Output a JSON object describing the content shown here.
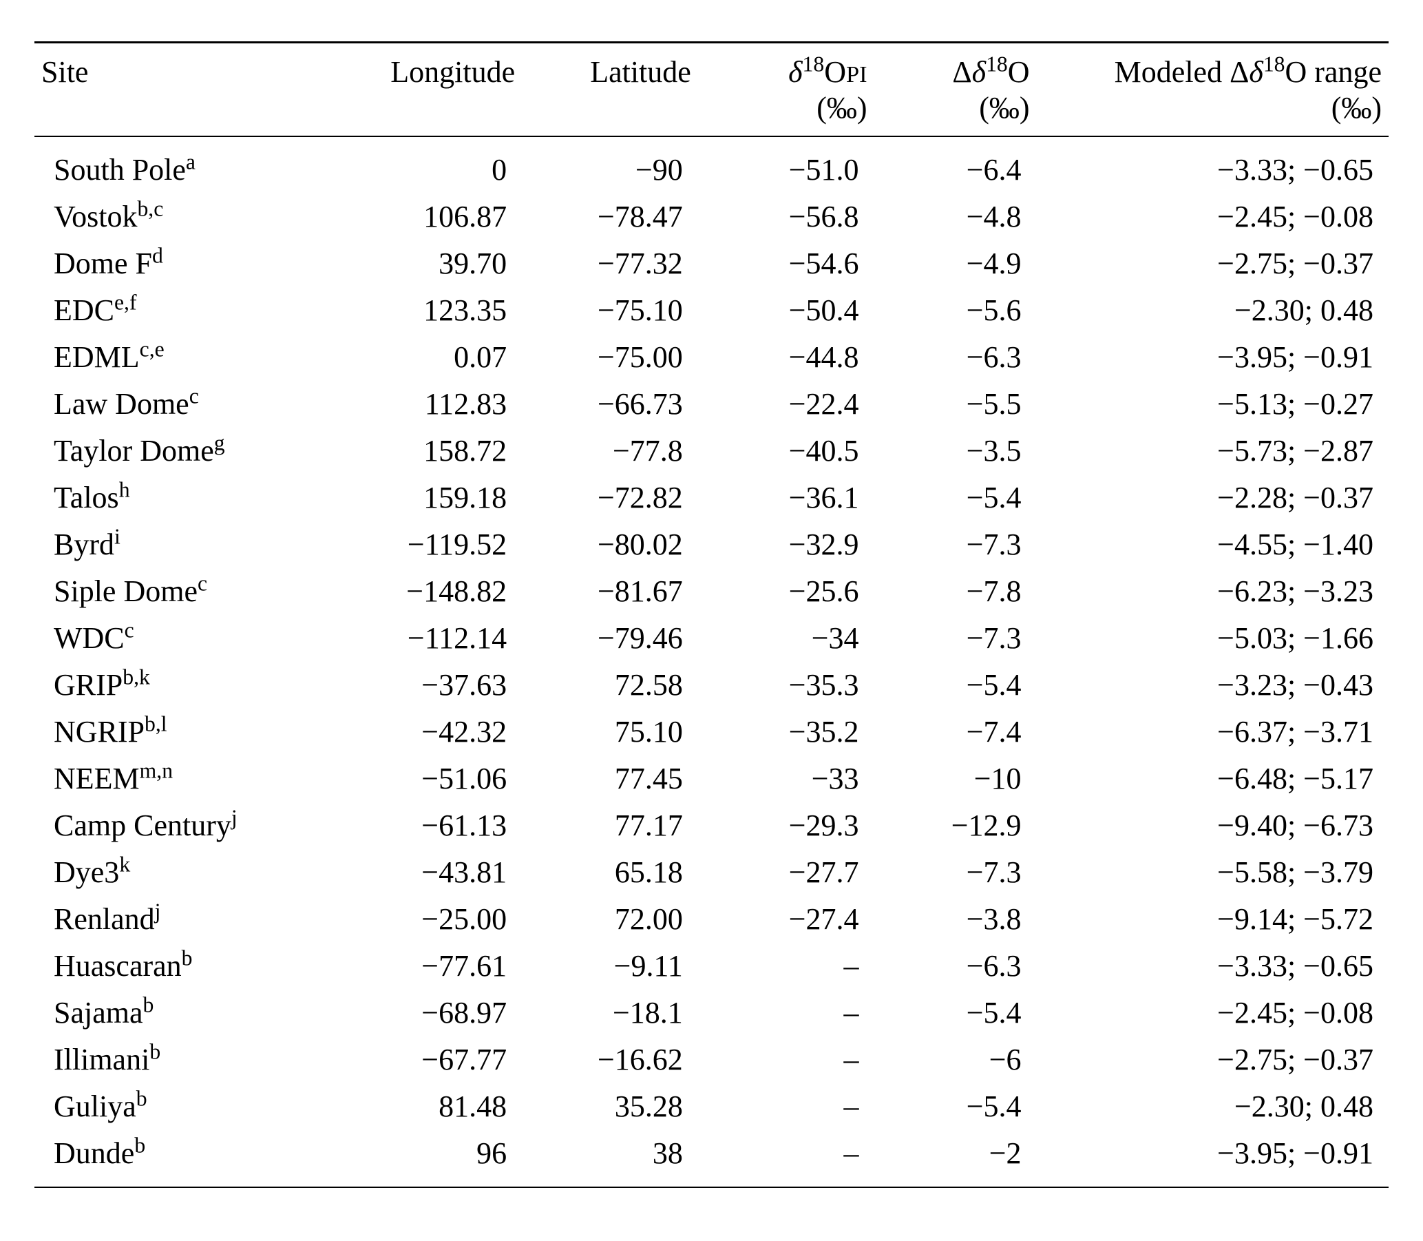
{
  "table": {
    "type": "table",
    "background_color": "#ffffff",
    "text_color": "#000000",
    "rule_color": "#000000",
    "font_family": "Times New Roman",
    "font_size_pt": 33,
    "columns": [
      {
        "key": "site",
        "label_line1": "Site",
        "label_line2": "",
        "align": "left",
        "width_pct": 22
      },
      {
        "key": "lon",
        "label_line1": "Longitude",
        "label_line2": "",
        "align": "right",
        "width_pct": 14
      },
      {
        "key": "lat",
        "label_line1": "Latitude",
        "label_line2": "",
        "align": "right",
        "width_pct": 13
      },
      {
        "key": "d18opi",
        "label_line1": "δ¹⁸Oᴘɪ",
        "label_line2": "(‰)",
        "align": "right",
        "width_pct": 13,
        "is_html": true,
        "label_line1_html": "<span style=\"font-style:italic\">δ</span><sup>18</sup>O<span class=\"isub\">PI</span>"
      },
      {
        "key": "dd18o",
        "label_line1": "Δδ¹⁸O",
        "label_line2": "(‰)",
        "align": "right",
        "width_pct": 12,
        "is_html": true,
        "label_line1_html": "Δ<span style=\"font-style:italic\">δ</span><sup>18</sup>O"
      },
      {
        "key": "range",
        "label_line1": "Modeled Δδ¹⁸O range",
        "label_line2": "(‰)",
        "align": "right",
        "width_pct": 26,
        "is_html": true,
        "label_line1_html": "Modeled Δ<span style=\"font-style:italic\">δ</span><sup>18</sup>O range"
      }
    ],
    "rows": [
      {
        "site": "South Pole",
        "site_sup": "a",
        "lon": "0",
        "lat": "−90",
        "d18opi": "−51.0",
        "dd18o": "−6.4",
        "range": "−3.33; −0.65"
      },
      {
        "site": "Vostok",
        "site_sup": "b,c",
        "lon": "106.87",
        "lat": "−78.47",
        "d18opi": "−56.8",
        "dd18o": "−4.8",
        "range": "−2.45; −0.08"
      },
      {
        "site": "Dome F",
        "site_sup": "d",
        "lon": "39.70",
        "lat": "−77.32",
        "d18opi": "−54.6",
        "dd18o": "−4.9",
        "range": "−2.75; −0.37"
      },
      {
        "site": "EDC",
        "site_sup": "e,f",
        "lon": "123.35",
        "lat": "−75.10",
        "d18opi": "−50.4",
        "dd18o": "−5.6",
        "range": "−2.30; 0.48"
      },
      {
        "site": "EDML",
        "site_sup": "c,e",
        "lon": "0.07",
        "lat": "−75.00",
        "d18opi": "−44.8",
        "dd18o": "−6.3",
        "range": "−3.95; −0.91"
      },
      {
        "site": "Law Dome",
        "site_sup": "c",
        "lon": "112.83",
        "lat": "−66.73",
        "d18opi": "−22.4",
        "dd18o": "−5.5",
        "range": "−5.13; −0.27"
      },
      {
        "site": "Taylor Dome",
        "site_sup": "g",
        "lon": "158.72",
        "lat": "−77.8",
        "d18opi": "−40.5",
        "dd18o": "−3.5",
        "range": "−5.73; −2.87"
      },
      {
        "site": "Talos",
        "site_sup": "h",
        "lon": "159.18",
        "lat": "−72.82",
        "d18opi": "−36.1",
        "dd18o": "−5.4",
        "range": "−2.28; −0.37"
      },
      {
        "site": "Byrd",
        "site_sup": "i",
        "lon": "−119.52",
        "lat": "−80.02",
        "d18opi": "−32.9",
        "dd18o": "−7.3",
        "range": "−4.55; −1.40"
      },
      {
        "site": "Siple Dome",
        "site_sup": "c",
        "lon": "−148.82",
        "lat": "−81.67",
        "d18opi": "−25.6",
        "dd18o": "−7.8",
        "range": "−6.23; −3.23"
      },
      {
        "site": "WDC",
        "site_sup": "c",
        "lon": "−112.14",
        "lat": "−79.46",
        "d18opi": "−34",
        "dd18o": "−7.3",
        "range": "−5.03; −1.66"
      },
      {
        "site": "GRIP",
        "site_sup": "b,k",
        "lon": "−37.63",
        "lat": "72.58",
        "d18opi": "−35.3",
        "dd18o": "−5.4",
        "range": "−3.23; −0.43"
      },
      {
        "site": "NGRIP",
        "site_sup": "b,l",
        "lon": "−42.32",
        "lat": "75.10",
        "d18opi": "−35.2",
        "dd18o": "−7.4",
        "range": "−6.37; −3.71"
      },
      {
        "site": "NEEM",
        "site_sup": "m,n",
        "lon": "−51.06",
        "lat": "77.45",
        "d18opi": "−33",
        "dd18o": "−10",
        "range": "−6.48; −5.17"
      },
      {
        "site": "Camp Century",
        "site_sup": "j",
        "lon": "−61.13",
        "lat": "77.17",
        "d18opi": "−29.3",
        "dd18o": "−12.9",
        "range": "−9.40; −6.73"
      },
      {
        "site": "Dye3",
        "site_sup": "k",
        "lon": "−43.81",
        "lat": "65.18",
        "d18opi": "−27.7",
        "dd18o": "−7.3",
        "range": "−5.58; −3.79"
      },
      {
        "site": "Renland",
        "site_sup": "j",
        "lon": "−25.00",
        "lat": "72.00",
        "d18opi": "−27.4",
        "dd18o": "−3.8",
        "range": "−9.14; −5.72"
      },
      {
        "site": "Huascaran",
        "site_sup": "b",
        "lon": "−77.61",
        "lat": "−9.11",
        "d18opi": "–",
        "dd18o": "−6.3",
        "range": "−3.33; −0.65"
      },
      {
        "site": "Sajama",
        "site_sup": "b",
        "lon": "−68.97",
        "lat": "−18.1",
        "d18opi": "–",
        "dd18o": "−5.4",
        "range": "−2.45; −0.08"
      },
      {
        "site": "Illimani",
        "site_sup": "b",
        "lon": "−67.77",
        "lat": "−16.62",
        "d18opi": "–",
        "dd18o": "−6",
        "range": "−2.75; −0.37"
      },
      {
        "site": "Guliya",
        "site_sup": "b",
        "lon": "81.48",
        "lat": "35.28",
        "d18opi": "–",
        "dd18o": "−5.4",
        "range": "−2.30; 0.48"
      },
      {
        "site": "Dunde",
        "site_sup": "b",
        "lon": "96",
        "lat": "38",
        "d18opi": "–",
        "dd18o": "−2",
        "range": "−3.95; −0.91"
      }
    ]
  }
}
